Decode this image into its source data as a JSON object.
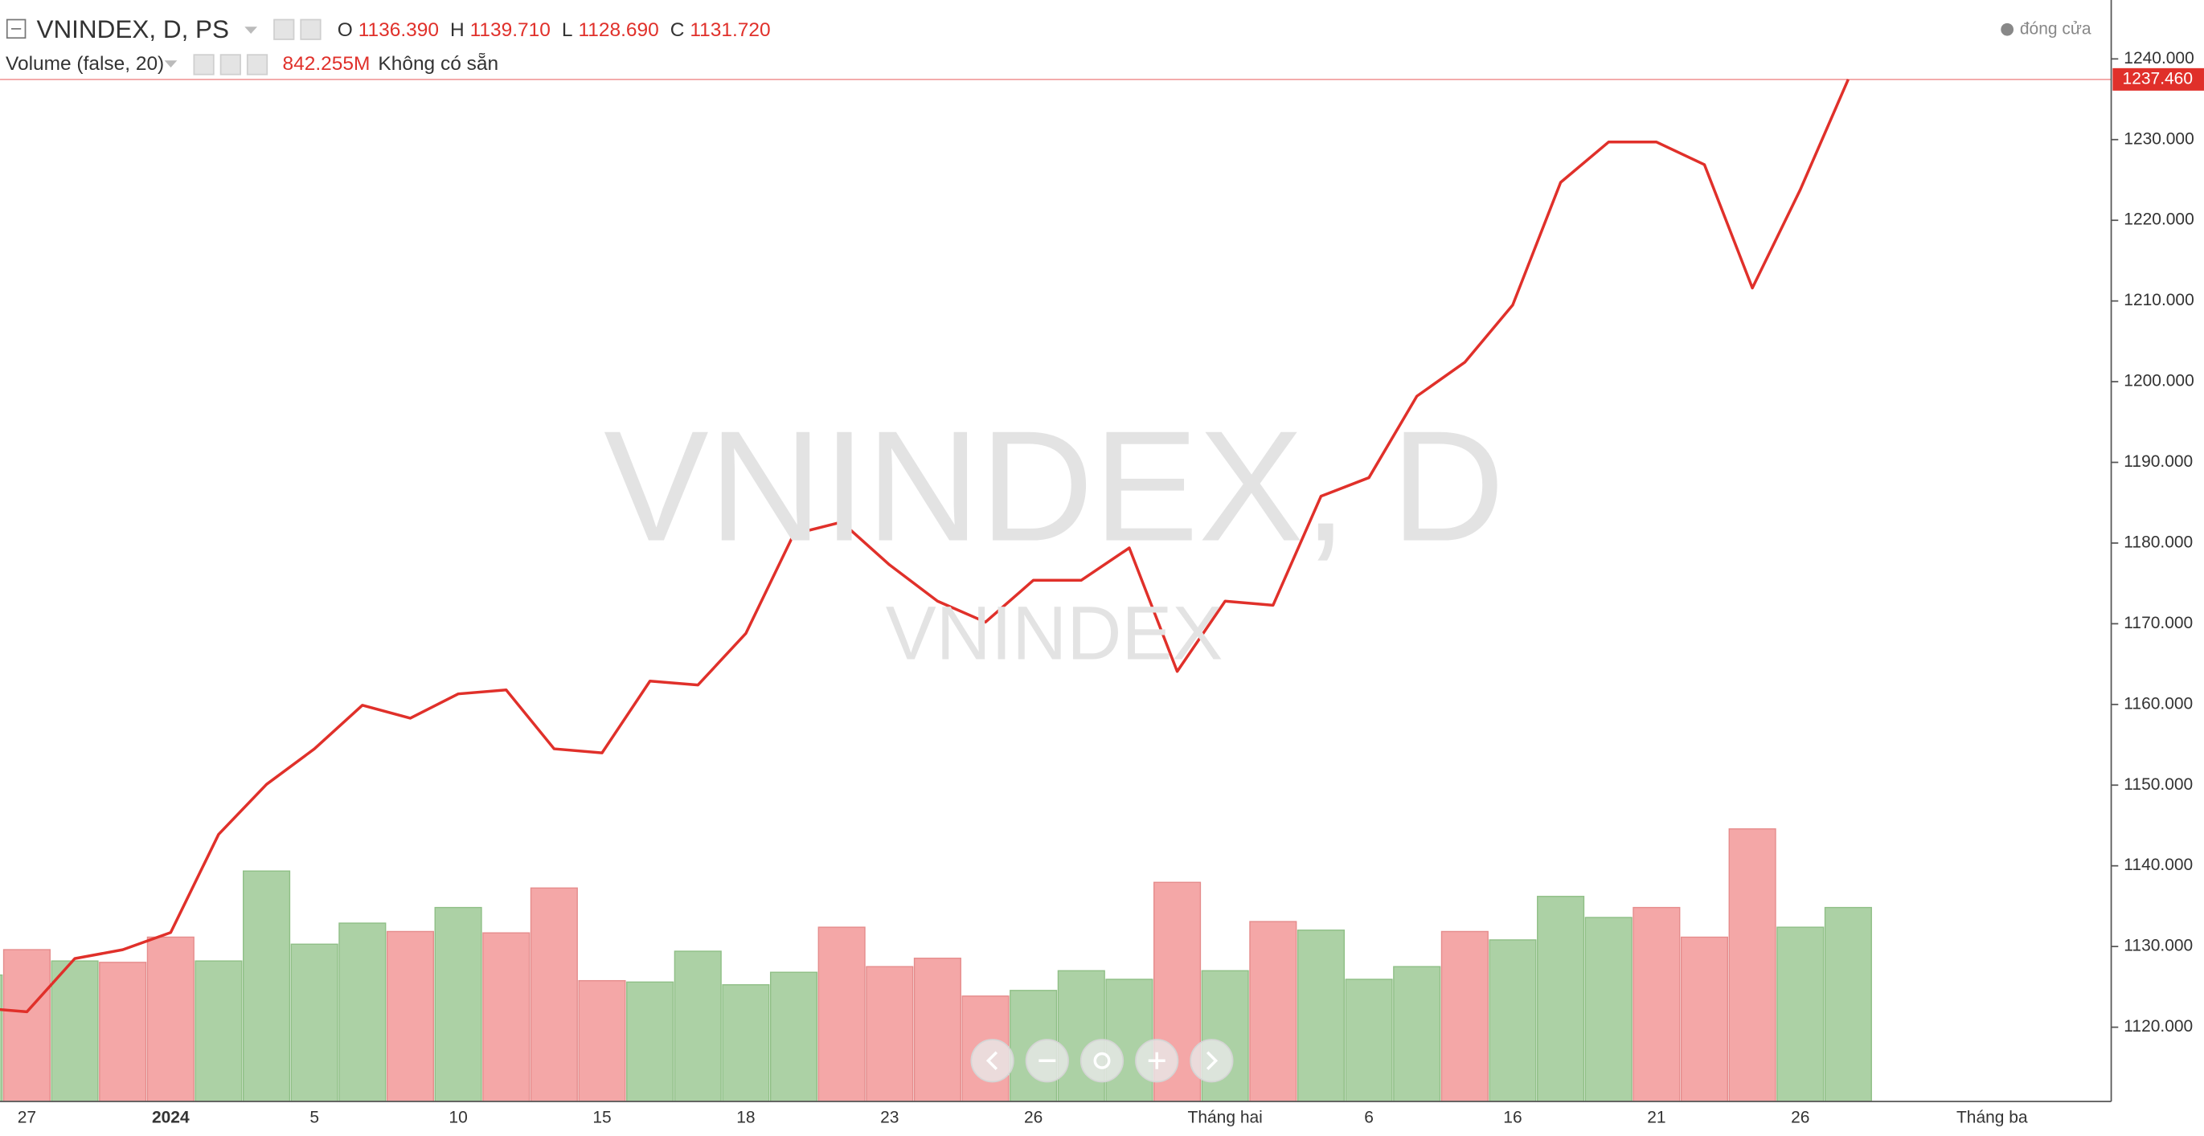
{
  "chart_data": {
    "type": "line",
    "title": "VNINDEX, D, PS",
    "ohlc": [
      {
        "label": "O",
        "value": "1136.390"
      },
      {
        "label": "H",
        "value": "1139.710"
      },
      {
        "label": "L",
        "value": "1128.690"
      },
      {
        "label": "C",
        "value": "1131.720"
      }
    ],
    "volume_title": "Volume (false, 20)",
    "volume_readout": "842.255M",
    "volume_note": "Không có sẵn",
    "legend": "đóng cửa",
    "watermark": "VNINDEX, D",
    "watermark_sub": "VNINDEX",
    "categories": [
      null,
      "27",
      null,
      null,
      "2024",
      null,
      null,
      "5",
      null,
      null,
      "10",
      null,
      null,
      "15",
      null,
      null,
      "18",
      null,
      null,
      "23",
      null,
      null,
      "26",
      null,
      null,
      null,
      "Tháng hai",
      null,
      null,
      "6",
      null,
      null,
      "16",
      null,
      null,
      "21",
      null,
      null,
      "26",
      null,
      null,
      null,
      "Tháng ba"
    ],
    "series": [
      {
        "name": "đóng cửa",
        "color": "#e0302a",
        "values": [
          1122.4,
          1121.9,
          1128.5,
          1129.6,
          1131.72,
          1143.9,
          1150.1,
          1154.5,
          1159.9,
          1158.3,
          1161.3,
          1161.8,
          1154.5,
          1154.0,
          1162.9,
          1162.4,
          1168.8,
          1181.1,
          1182.6,
          1177.3,
          1172.8,
          1170.2,
          1175.4,
          1175.4,
          1179.4,
          1164.1,
          1172.8,
          1172.3,
          1185.8,
          1188.1,
          1198.2,
          1202.4,
          1209.5,
          1224.7,
          1229.7,
          1229.7,
          1226.9,
          1211.6,
          1223.8,
          1237.46,
          null,
          null,
          null
        ]
      }
    ],
    "volume": {
      "values": [
        648,
        778,
        720,
        713,
        842.255,
        720,
        1181,
        806,
        914,
        871,
        994,
        864,
        1094,
        619,
        612,
        770,
        598,
        662,
        893,
        691,
        734,
        540,
        569,
        670,
        626,
        1123,
        670,
        922,
        878,
        626,
        691,
        871,
        828,
        1051,
        943,
        994,
        842,
        1397,
        893,
        994,
        null,
        null,
        null
      ],
      "colors": [
        "#acd1a5",
        "#f4a7a7",
        "#acd1a5",
        "#f4a7a7",
        "#f4a7a7",
        "#acd1a5",
        "#acd1a5",
        "#acd1a5",
        "#acd1a5",
        "#f4a7a7",
        "#acd1a5",
        "#f4a7a7",
        "#f4a7a7",
        "#f4a7a7",
        "#acd1a5",
        "#acd1a5",
        "#acd1a5",
        "#acd1a5",
        "#f4a7a7",
        "#f4a7a7",
        "#f4a7a7",
        "#f4a7a7",
        "#acd1a5",
        "#acd1a5",
        "#acd1a5",
        "#f4a7a7",
        "#acd1a5",
        "#f4a7a7",
        "#acd1a5",
        "#acd1a5",
        "#acd1a5",
        "#f4a7a7",
        "#acd1a5",
        "#acd1a5",
        "#acd1a5",
        "#f4a7a7",
        "#f4a7a7",
        "#f4a7a7",
        "#acd1a5",
        "#acd1a5",
        null,
        null,
        null
      ]
    },
    "ylim": [
      1110.8,
      1247.3
    ],
    "yticks": [
      {
        "value": 1120,
        "label": "1120.000"
      },
      {
        "value": 1130,
        "label": "1130.000"
      },
      {
        "value": 1140,
        "label": "1140.000"
      },
      {
        "value": 1150,
        "label": "1150.000"
      },
      {
        "value": 1160,
        "label": "1160.000"
      },
      {
        "value": 1170,
        "label": "1170.000"
      },
      {
        "value": 1180,
        "label": "1180.000"
      },
      {
        "value": 1190,
        "label": "1190.000"
      },
      {
        "value": 1200,
        "label": "1200.000"
      },
      {
        "value": 1210,
        "label": "1210.000"
      },
      {
        "value": 1220,
        "label": "1220.000"
      },
      {
        "value": 1230,
        "label": "1230.000"
      },
      {
        "value": 1240,
        "label": "1240.000"
      }
    ],
    "last_price": {
      "value": 1237.46,
      "label": "1237.460"
    },
    "grid": false
  }
}
